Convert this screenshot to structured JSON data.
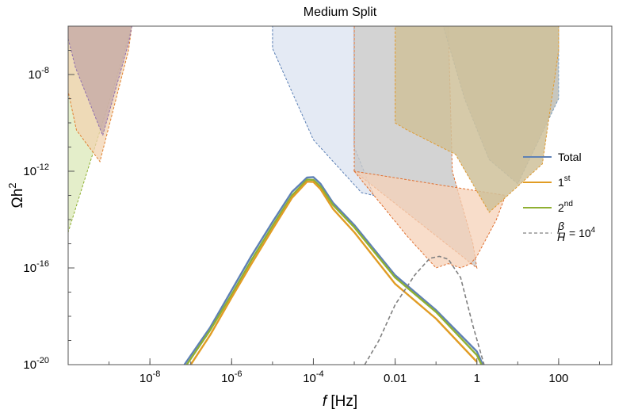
{
  "chart_data": {
    "type": "line",
    "title": "Medium Split",
    "xlabel": "f [Hz]",
    "xlabel_italic_part": "f",
    "xlabel_unit": "[Hz]",
    "ylabel": "Ωh²",
    "xscale": "log",
    "yscale": "log",
    "xlim": [
      1e-10,
      2000
    ],
    "ylim": [
      1e-20,
      1e-06
    ],
    "x_ticks": [
      {
        "value": 1e-08,
        "label": "10",
        "exp": "-8"
      },
      {
        "value": 1e-06,
        "label": "10",
        "exp": "-6"
      },
      {
        "value": 0.0001,
        "label": "10",
        "exp": "-4"
      },
      {
        "value": 0.01,
        "label": "0.01",
        "exp": ""
      },
      {
        "value": 1,
        "label": "1",
        "exp": ""
      },
      {
        "value": 100,
        "label": "100",
        "exp": ""
      }
    ],
    "y_ticks": [
      {
        "value": 1e-08,
        "label": "10",
        "exp": "-8"
      },
      {
        "value": 1e-12,
        "label": "10",
        "exp": "-12"
      },
      {
        "value": 1e-16,
        "label": "10",
        "exp": "-16"
      },
      {
        "value": 1e-20,
        "label": "10",
        "exp": "-20"
      }
    ],
    "legend_position": "right",
    "legend": [
      {
        "label": "Total",
        "sup": "",
        "color": "#5e81b5",
        "dash": false
      },
      {
        "label": "1",
        "sup": "st",
        "color": "#e19c24",
        "dash": false
      },
      {
        "label": "2",
        "sup": "nd",
        "color": "#8fb032",
        "dash": false
      },
      {
        "label": "= 10",
        "sup": "4",
        "frac_num": "β",
        "frac_den": "H",
        "color": "#808080",
        "dash": true
      }
    ],
    "series": [
      {
        "name": "Total",
        "color": "#5e81b5",
        "x": [
          7e-08,
          3e-07,
          1e-06,
          3e-06,
          1e-05,
          3e-05,
          7e-05,
          0.0001,
          0.00015,
          0.0003,
          0.001,
          0.01,
          0.1,
          1,
          1.4
        ],
        "y": [
          1e-20,
          3.5e-19,
          1.2e-17,
          3e-16,
          8e-15,
          1.4e-13,
          5.5e-13,
          5.7e-13,
          3e-13,
          5e-14,
          6e-15,
          5e-17,
          1.8e-18,
          3.5e-20,
          1e-20
        ]
      },
      {
        "name": "2nd",
        "color": "#8fb032",
        "x": [
          8e-08,
          3e-07,
          1e-06,
          3e-06,
          1e-05,
          3e-05,
          7e-05,
          0.0001,
          0.00015,
          0.0003,
          0.001,
          0.01,
          0.1,
          1,
          1.3
        ],
        "y": [
          1e-20,
          2.7e-19,
          8e-18,
          2e-16,
          5.5e-15,
          1e-13,
          4.5e-13,
          4.4e-13,
          2.3e-13,
          4e-14,
          4.8e-15,
          4e-17,
          1.5e-18,
          2.5e-20,
          1e-20
        ]
      },
      {
        "name": "1st",
        "color": "#e19c24",
        "x": [
          1e-07,
          3e-07,
          1e-06,
          3e-06,
          1e-05,
          3e-05,
          7e-05,
          0.0001,
          0.00015,
          0.0003,
          0.001,
          0.01,
          0.1,
          1
        ],
        "y": [
          1e-20,
          1.7e-19,
          6e-18,
          1.4e-16,
          4e-15,
          8e-14,
          3.7e-13,
          3.6e-13,
          1.8e-13,
          2.8e-14,
          3e-15,
          2.2e-17,
          8e-19,
          1.3e-20
        ]
      },
      {
        "name": "β/H = 10^4",
        "color": "#808080",
        "dash": true,
        "x": [
          0.0018,
          0.004,
          0.01,
          0.03,
          0.07,
          0.12,
          0.2,
          0.4,
          0.8,
          1.5
        ],
        "y": [
          1e-20,
          1e-19,
          3e-18,
          5e-17,
          2.5e-16,
          3e-16,
          2.3e-16,
          4e-17,
          4e-19,
          1e-20
        ]
      }
    ],
    "regions": [
      {
        "id": "region-left-green",
        "fill": "#dbe8b8",
        "stroke": "#8fb032",
        "x": [
          1e-10,
          3.6e-09,
          1.3e-09,
          1e-10
        ],
        "y": [
          1e-06,
          1e-06,
          3e-09,
          3e-15
        ]
      },
      {
        "id": "region-left-orange",
        "fill": "#f2d3b0",
        "stroke": "#e08030",
        "x": [
          1e-10,
          3.6e-09,
          3e-09,
          6e-10,
          1.6e-10,
          1e-10
        ],
        "y": [
          1e-06,
          1e-06,
          1e-07,
          2.5e-12,
          5e-11,
          2e-09
        ]
      },
      {
        "id": "region-left-purple",
        "fill": "#c3a7a6",
        "stroke": "#9070b0",
        "x": [
          1e-10,
          3.6e-09,
          3e-09,
          7e-10,
          1.5e-10,
          1e-10
        ],
        "y": [
          1e-06,
          1e-06,
          2e-07,
          3e-11,
          2e-08,
          3e-07
        ]
      },
      {
        "id": "region-blue-lisa",
        "fill": "#dbe3f0",
        "stroke": "#5a7fb5",
        "x": [
          1e-05,
          0.001,
          0.001,
          0.003,
          0.0015,
          0.0001,
          1e-05
        ],
        "y": [
          1e-06,
          1e-06,
          1e-11,
          1e-13,
          1.3e-13,
          2e-11,
          1.2e-07
        ]
      },
      {
        "id": "region-grey-orange",
        "fill": "#c8c8c8",
        "stroke": "#e07030",
        "opacity": 0.8,
        "x": [
          0.001,
          0.2,
          0.25,
          0.8,
          1,
          0.001
        ],
        "y": [
          1e-06,
          1e-06,
          1e-12,
          1e-15,
          1e-16,
          1e-12
        ]
      },
      {
        "id": "region-peach",
        "fill": "#f5d2b8",
        "stroke": "#e07030",
        "x": [
          0.001,
          0.001,
          0.02,
          0.1,
          0.2,
          0.4,
          0.7,
          1,
          3,
          5
        ],
        "y": [
          1e-12,
          1e-12,
          2e-15,
          1e-16,
          1.5e-16,
          1e-16,
          1.5e-16,
          3e-16,
          1e-14,
          1e-13
        ]
      },
      {
        "id": "region-grey-upper",
        "fill": "#bdbdb4",
        "stroke": "#7a9ec0",
        "opacity": 0.85,
        "x": [
          0.001,
          0.01,
          0.15,
          0.5,
          2,
          10,
          100,
          100,
          0.001
        ],
        "y": [
          1e-06,
          1e-06,
          1e-06,
          1e-09,
          3e-12,
          3e-13,
          1e-09,
          1e-06,
          1e-06
        ]
      },
      {
        "id": "region-tan",
        "fill": "#cfc19a",
        "stroke": "#e09a30",
        "opacity": 0.85,
        "x": [
          0.01,
          100,
          100,
          40,
          2,
          0.3,
          0.02,
          0.01
        ],
        "y": [
          1e-06,
          1e-06,
          1e-07,
          2e-12,
          2e-14,
          5e-12,
          5e-11,
          1e-10
        ]
      }
    ]
  }
}
